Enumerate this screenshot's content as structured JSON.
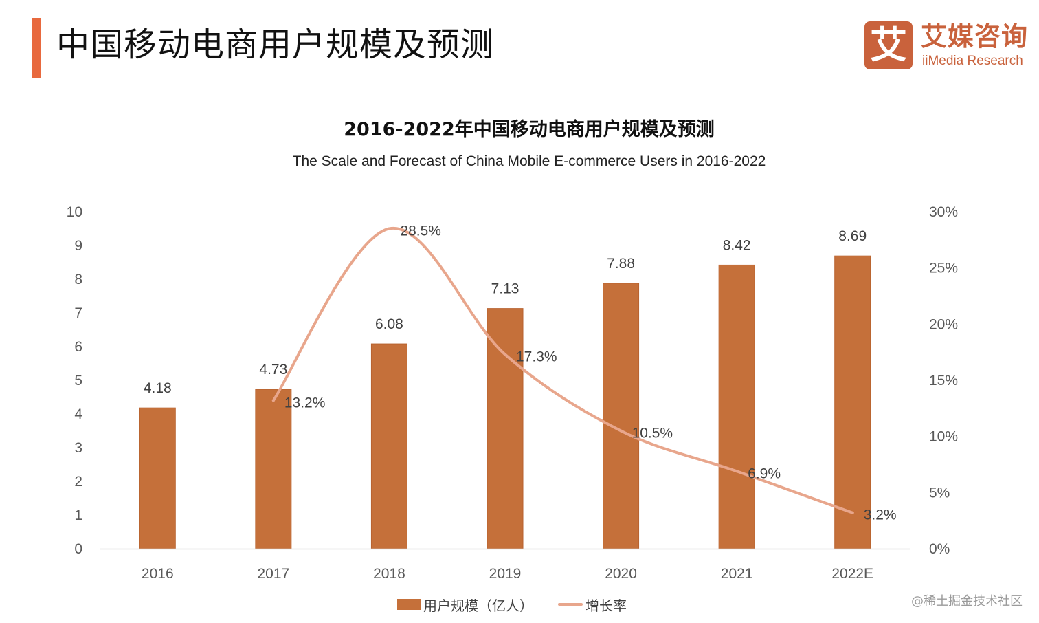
{
  "header": {
    "title": "中国移动电商用户规模及预测",
    "logo_badge": "艾",
    "logo_cn": "艾媒咨询",
    "logo_en": "iiMedia Research"
  },
  "watermark": "@稀土掘金技术社区",
  "colors": {
    "accent": "#e8693e",
    "bar": "#c5703a",
    "line": "#e8a68c",
    "logo": "#c9623c"
  },
  "chart_data": {
    "type": "bar",
    "title": "2016-2022年中国移动电商用户规模及预测",
    "subtitle": "The Scale and Forecast of China Mobile E-commerce Users in 2016-2022",
    "categories": [
      "2016",
      "2017",
      "2018",
      "2019",
      "2020",
      "2021",
      "2022E"
    ],
    "series": [
      {
        "name": "用户规模（亿人）",
        "type": "bar",
        "axis": "left",
        "values": [
          4.18,
          4.73,
          6.08,
          7.13,
          7.88,
          8.42,
          8.69
        ],
        "labels": [
          "4.18",
          "4.73",
          "6.08",
          "7.13",
          "7.88",
          "8.42",
          "8.69"
        ]
      },
      {
        "name": "增长率",
        "type": "line",
        "axis": "right",
        "smooth": true,
        "values": [
          null,
          13.2,
          28.5,
          17.3,
          10.5,
          6.9,
          3.2
        ],
        "labels": [
          null,
          "13.2%",
          "28.5%",
          "17.3%",
          "10.5%",
          "6.9%",
          "3.2%"
        ]
      }
    ],
    "y_left": {
      "min": 0,
      "max": 10,
      "ticks": [
        "0",
        "1",
        "2",
        "3",
        "4",
        "5",
        "6",
        "7",
        "8",
        "9",
        "10"
      ]
    },
    "y_right": {
      "min": 0,
      "max": 30,
      "ticks": [
        "0%",
        "5%",
        "10%",
        "15%",
        "20%",
        "25%",
        "30%"
      ]
    },
    "xlabel": "",
    "ylabel": "",
    "grid": false,
    "legend": "bottom-center"
  }
}
